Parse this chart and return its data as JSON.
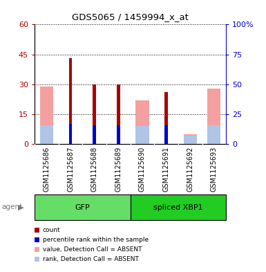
{
  "title": "GDS5065 / 1459994_x_at",
  "samples": [
    "GSM1125686",
    "GSM1125687",
    "GSM1125688",
    "GSM1125689",
    "GSM1125690",
    "GSM1125691",
    "GSM1125692",
    "GSM1125693"
  ],
  "count_values": [
    null,
    43,
    30,
    30,
    null,
    26,
    null,
    null
  ],
  "percentile_values": [
    null,
    17,
    16,
    16,
    null,
    16,
    null,
    null
  ],
  "absent_value": [
    29,
    null,
    null,
    null,
    22,
    null,
    5,
    28
  ],
  "absent_rank": [
    16,
    null,
    null,
    null,
    15,
    null,
    7,
    16
  ],
  "ylim_left": [
    0,
    60
  ],
  "ylim_right": [
    0,
    100
  ],
  "yticks_left": [
    0,
    15,
    30,
    45,
    60
  ],
  "yticks_right": [
    0,
    25,
    50,
    75,
    100
  ],
  "ytick_labels_right": [
    "0",
    "25",
    "50",
    "75",
    "100%"
  ],
  "color_count": "#aa0000",
  "color_percentile": "#0000cc",
  "color_absent_value": "#f4a0a0",
  "color_absent_rank": "#b0c4e8",
  "gfp_light": "#ccf5cc",
  "gfp_dark": "#66dd66",
  "xbp1_light": "#66dd66",
  "xbp1_dark": "#22cc22",
  "wide_bar_width": 0.55,
  "narrow_bar_width": 0.13,
  "background_color": "#ffffff"
}
